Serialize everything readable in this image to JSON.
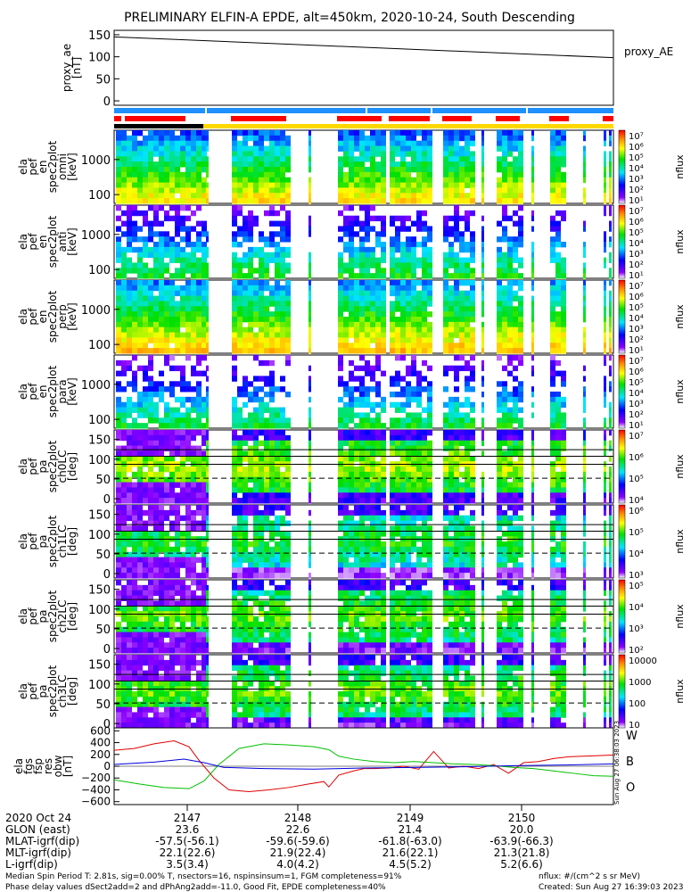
{
  "title": "PRELIMINARY ELFIN-A EPDE, alt=450km, 2020-10-24, South Descending",
  "colors": {
    "red": "#ff0000",
    "blue": "#1e90ff",
    "yellow": "#ffd800",
    "black": "#000000",
    "line_red": "#e00000",
    "line_green": "#00c000",
    "line_blue": "#0000e0"
  },
  "chart_data": [
    {
      "type": "line",
      "id": "proxy_ae",
      "ylabel_lines": [
        "proxy_ae",
        "[nT]"
      ],
      "yticks": [
        "150",
        "100",
        "50",
        "0"
      ],
      "ylim": [
        -10,
        160
      ],
      "legend": "proxy_AE",
      "x": [
        0,
        1
      ],
      "y": [
        145,
        98
      ]
    },
    {
      "type": "heatmap",
      "id": "spec-omni",
      "ylabel_lines": [
        "ela",
        "pef",
        "en",
        "spec2plot",
        "omni",
        "[keV]"
      ],
      "yticks": [
        "1000",
        "100"
      ],
      "scale_label": "nflux",
      "cbar_ticks": [
        "10⁷",
        "10⁶",
        "10⁵",
        "10⁴",
        "10³",
        "10²",
        "10¹"
      ]
    },
    {
      "type": "heatmap",
      "id": "spec-anti",
      "ylabel_lines": [
        "ela",
        "pef",
        "en",
        "spec2plot",
        "anti",
        "[keV]"
      ],
      "yticks": [
        "1000",
        "100"
      ],
      "scale_label": "nflux",
      "cbar_ticks": [
        "10⁷",
        "10⁶",
        "10⁵",
        "10⁴",
        "10³",
        "10²",
        "10¹"
      ]
    },
    {
      "type": "heatmap",
      "id": "spec-perp",
      "ylabel_lines": [
        "ela",
        "pef",
        "en",
        "spec2plot",
        "perp",
        "[keV]"
      ],
      "yticks": [
        "1000",
        "100"
      ],
      "scale_label": "nflux",
      "cbar_ticks": [
        "10⁷",
        "10⁶",
        "10⁵",
        "10⁴",
        "10³",
        "10²",
        "10¹"
      ]
    },
    {
      "type": "heatmap",
      "id": "spec-para",
      "ylabel_lines": [
        "ela",
        "pef",
        "en",
        "spec2plot",
        "para",
        "[keV]"
      ],
      "yticks": [
        "1000",
        "100"
      ],
      "scale_label": "nflux",
      "cbar_ticks": [
        "10⁷",
        "10⁶",
        "10⁵",
        "10⁴",
        "10³",
        "10²",
        "10¹"
      ]
    },
    {
      "type": "heatmap",
      "id": "pa-ch0",
      "ylabel_lines": [
        "ela",
        "pef",
        "pa",
        "spec2plot",
        "ch0LC",
        "[deg]"
      ],
      "yticks": [
        "150",
        "100",
        "50",
        "0"
      ],
      "scale_label": "nflux",
      "cbar_ticks": [
        "10⁷",
        "10⁶",
        "10⁵",
        "10⁴"
      ]
    },
    {
      "type": "heatmap",
      "id": "pa-ch1",
      "ylabel_lines": [
        "ela",
        "pef",
        "pa",
        "spec2plot",
        "ch1LC",
        "[deg]"
      ],
      "yticks": [
        "150",
        "100",
        "50",
        "0"
      ],
      "scale_label": "nflux",
      "cbar_ticks": [
        "10⁶",
        "10⁵",
        "10⁴",
        "10³"
      ]
    },
    {
      "type": "heatmap",
      "id": "pa-ch2",
      "ylabel_lines": [
        "ela",
        "pef",
        "pa",
        "spec2plot",
        "ch2LC",
        "[deg]"
      ],
      "yticks": [
        "150",
        "100",
        "50",
        "0"
      ],
      "scale_label": "nflux",
      "cbar_ticks": [
        "10⁵",
        "10⁴",
        "10³",
        "10²"
      ]
    },
    {
      "type": "heatmap",
      "id": "pa-ch3",
      "ylabel_lines": [
        "ela",
        "pef",
        "pa",
        "spec2plot",
        "ch3LC",
        "[deg]"
      ],
      "yticks": [
        "150",
        "100",
        "50",
        "0"
      ],
      "scale_label": "nflux",
      "cbar_ticks": [
        "10000",
        "1000",
        "100",
        "10"
      ]
    },
    {
      "type": "line",
      "id": "fgs-res",
      "ylabel_lines": [
        "ela",
        "fgs",
        "fsp",
        "res",
        "obw",
        "[nT]"
      ],
      "yticks": [
        "600",
        "400",
        "200",
        "0",
        "−200",
        "−400",
        "−600"
      ],
      "ylim": [
        -650,
        650
      ],
      "series": [
        {
          "name": "W",
          "color": "#e00000",
          "x": [
            0,
            0.04,
            0.08,
            0.12,
            0.15,
            0.17,
            0.2,
            0.23,
            0.27,
            0.31,
            0.35,
            0.39,
            0.42,
            0.43,
            0.45,
            0.48,
            0.5,
            0.52,
            0.55,
            0.58,
            0.61,
            0.64,
            0.67,
            0.7,
            0.73,
            0.76,
            0.79,
            0.82,
            0.85,
            0.88,
            0.91,
            0.94,
            0.97,
            1
          ],
          "y": [
            270,
            300,
            380,
            430,
            330,
            100,
            -200,
            -400,
            -430,
            -400,
            -360,
            -300,
            -260,
            -350,
            -150,
            -80,
            -40,
            -40,
            -30,
            0,
            -50,
            250,
            -30,
            0,
            -40,
            30,
            -120,
            60,
            80,
            130,
            160,
            170,
            180,
            190
          ]
        },
        {
          "name": "B",
          "color": "#00c000",
          "x": [
            0,
            0.05,
            0.1,
            0.15,
            0.18,
            0.21,
            0.25,
            0.3,
            0.35,
            0.4,
            0.43,
            0.45,
            0.48,
            0.52,
            0.56,
            0.6,
            0.64,
            0.68,
            0.72,
            0.76,
            0.8,
            0.84,
            0.88,
            0.92,
            0.96,
            1
          ],
          "y": [
            -230,
            -300,
            -360,
            -380,
            -250,
            30,
            300,
            380,
            360,
            330,
            280,
            170,
            120,
            80,
            60,
            80,
            60,
            40,
            30,
            10,
            -20,
            -40,
            -80,
            -120,
            -160,
            -170
          ]
        },
        {
          "name": "O",
          "color": "#0000e0",
          "x": [
            0,
            0.08,
            0.14,
            0.18,
            0.22,
            0.3,
            0.4,
            0.5,
            0.6,
            0.7,
            0.8,
            0.9,
            1
          ],
          "y": [
            30,
            70,
            120,
            60,
            -20,
            -40,
            -50,
            -30,
            -20,
            -10,
            10,
            20,
            40
          ]
        }
      ]
    }
  ],
  "x_axis": {
    "row_labels": [
      "2020 Oct 24",
      "GLON (east)",
      "MLAT-igrf(dip)",
      "MLT-igrf(dip)",
      "L-igrf(dip)"
    ],
    "columns": [
      {
        "time": "2147",
        "glon": "23.6",
        "mlat": "-57.5(-56.1)",
        "mlt": "22.1(22.6)",
        "l": "3.5(3.4)"
      },
      {
        "time": "2148",
        "glon": "22.6",
        "mlat": "-59.6(-59.6)",
        "mlt": "21.9(22.4)",
        "l": "4.0(4.2)"
      },
      {
        "time": "2149",
        "glon": "21.4",
        "mlat": "-61.8(-63.0)",
        "mlt": "21.6(22.1)",
        "l": "4.5(5.2)"
      },
      {
        "time": "2150",
        "glon": "20.0",
        "mlat": "-63.9(-66.3)",
        "mlt": "21.3(21.8)",
        "l": "5.2(6.6)"
      }
    ]
  },
  "footer": {
    "line1_left": "Median Spin Period T: 2.81s, sig=0.00% T, nsectors=16, nspinsinsum=1, FGM completeness=91%",
    "line2_left": "Phase delay values dSect2add=2 and dPhAng2add=-11.0, Good Fit, EPDE completeness=40%",
    "line1_right": "nflux: #/(cm^2 s sr MeV)",
    "line2_right": "Created: Sun Aug 27 16:39:03 2023",
    "vertical_stamp": "Sun Aug 27 06:38:03 2023"
  }
}
